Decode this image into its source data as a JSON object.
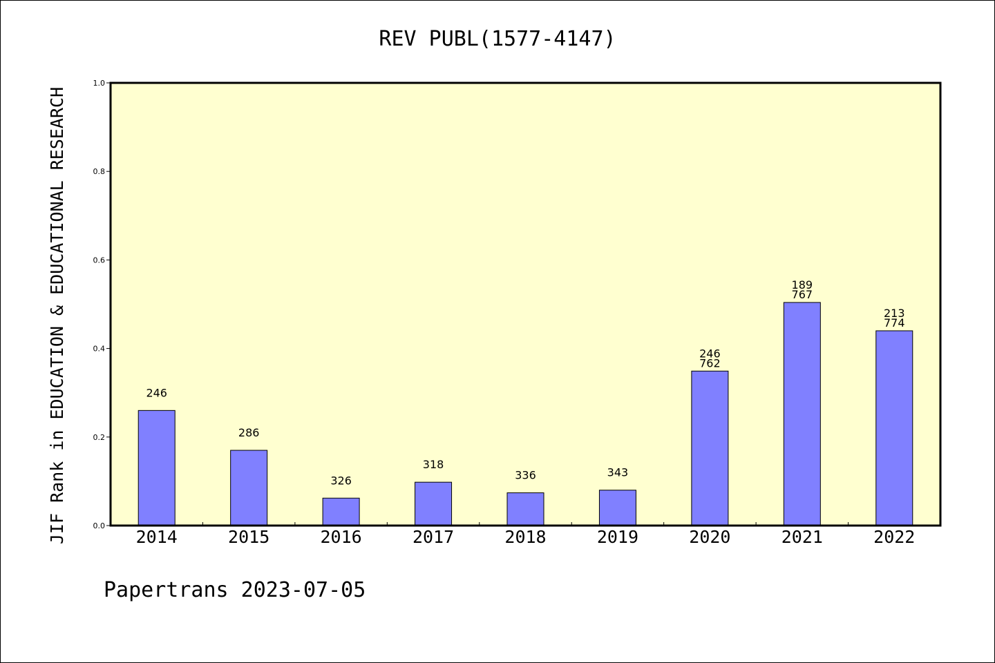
{
  "chart_data": {
    "type": "bar",
    "title": "REV PUBL(1577-4147)",
    "ylabel": "JIF Rank in EDUCATION & EDUCATIONAL RESEARCH",
    "xlabel": "",
    "ylim": [
      0.0,
      1.0
    ],
    "yticks": [
      "0.0",
      "0.2",
      "0.4",
      "0.6",
      "0.8",
      "1.0"
    ],
    "categories": [
      "2014",
      "2015",
      "2016",
      "2017",
      "2018",
      "2019",
      "2020",
      "2021",
      "2022"
    ],
    "values": [
      0.26,
      0.17,
      0.062,
      0.098,
      0.074,
      0.08,
      0.349,
      0.504,
      0.44
    ],
    "labels": [
      [
        "246"
      ],
      [
        "286"
      ],
      [
        "326"
      ],
      [
        "318"
      ],
      [
        "336"
      ],
      [
        "343"
      ],
      [
        "246",
        "762"
      ],
      [
        "189",
        "767"
      ],
      [
        "213",
        "774"
      ]
    ],
    "grid": false,
    "colors": {
      "plot_background": "#ffffd0",
      "bar_fill": "#8080ff",
      "bar_stroke": "#000000"
    }
  },
  "footer": "Papertrans 2023-07-05"
}
